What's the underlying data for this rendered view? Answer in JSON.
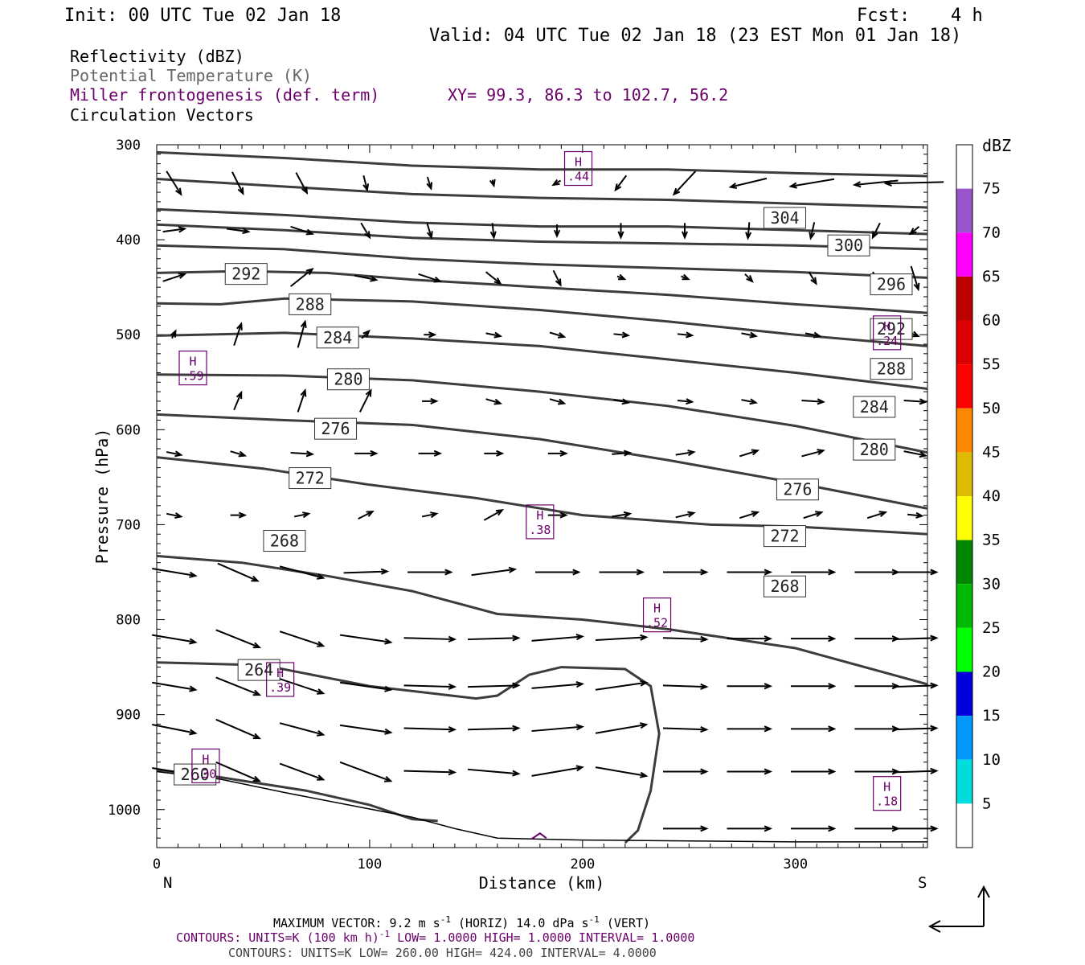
{
  "header": {
    "init": "Init: 00 UTC Tue 02 Jan 18",
    "fcst_label": "Fcst:",
    "fcst_value": "4 h",
    "valid": "Valid: 04 UTC Tue 02 Jan 18 (23 EST Mon 01 Jan 18)"
  },
  "fields": {
    "reflectivity": "Reflectivity (dBZ)",
    "theta": "Potential Temperature (K)",
    "miller": "Miller frontogenesis (def. term)",
    "xy": "XY=  99.3, 86.3 to 102.7, 56.2",
    "vectors": "Circulation Vectors"
  },
  "colors": {
    "theta_line": "#3c3c3c",
    "miller": "#6a006a",
    "vector": "#000000"
  },
  "chart_data": {
    "type": "cross-section",
    "xlabel": "Distance (km)",
    "ylabel": "Pressure (hPa)",
    "xlim": [
      0,
      362
    ],
    "ylim": [
      300,
      1040
    ],
    "y_scale": "linear, inverted",
    "x_ticks": [
      "0",
      "100",
      "200",
      "300"
    ],
    "y_ticks": [
      "300",
      "400",
      "500",
      "600",
      "700",
      "800",
      "900",
      "1000"
    ],
    "x_end_labels": {
      "left": "N",
      "right": "S"
    },
    "theta_contours": [
      {
        "value": "304",
        "points": [
          [
            0,
            308
          ],
          [
            60,
            314
          ],
          [
            120,
            322
          ],
          [
            180,
            326
          ],
          [
            240,
            326
          ],
          [
            300,
            330
          ],
          [
            362,
            333
          ]
        ]
      },
      {
        "value": "300",
        "points": [
          [
            0,
            336
          ],
          [
            60,
            344
          ],
          [
            120,
            352
          ],
          [
            180,
            356
          ],
          [
            240,
            358
          ],
          [
            300,
            362
          ],
          [
            362,
            366
          ]
        ]
      },
      {
        "value": "296",
        "points": [
          [
            0,
            368
          ],
          [
            60,
            374
          ],
          [
            120,
            382
          ],
          [
            180,
            386
          ],
          [
            240,
            386
          ],
          [
            300,
            390
          ],
          [
            362,
            394
          ]
        ]
      },
      {
        "value": "292",
        "points": [
          [
            0,
            384
          ],
          [
            60,
            390
          ],
          [
            120,
            398
          ],
          [
            180,
            402
          ],
          [
            240,
            404
          ],
          [
            300,
            406
          ],
          [
            362,
            410
          ]
        ]
      },
      {
        "value": "288",
        "points": [
          [
            0,
            406
          ],
          [
            60,
            410
          ],
          [
            120,
            420
          ],
          [
            180,
            426
          ],
          [
            240,
            430
          ],
          [
            300,
            434
          ],
          [
            362,
            440
          ]
        ]
      },
      {
        "value": "284",
        "points": [
          [
            0,
            435
          ],
          [
            40,
            433
          ],
          [
            80,
            435
          ],
          [
            120,
            442
          ],
          [
            180,
            450
          ],
          [
            240,
            458
          ],
          [
            300,
            468
          ],
          [
            362,
            477
          ]
        ]
      },
      {
        "value": "280",
        "points": [
          [
            0,
            467
          ],
          [
            30,
            468
          ],
          [
            60,
            462
          ],
          [
            120,
            465
          ],
          [
            180,
            474
          ],
          [
            240,
            486
          ],
          [
            300,
            500
          ],
          [
            362,
            512
          ]
        ]
      },
      {
        "value": "276",
        "points": [
          [
            0,
            501
          ],
          [
            60,
            498
          ],
          [
            120,
            504
          ],
          [
            180,
            512
          ],
          [
            240,
            526
          ],
          [
            300,
            540
          ],
          [
            362,
            557
          ]
        ]
      },
      {
        "value": "272",
        "points": [
          [
            0,
            542
          ],
          [
            60,
            543
          ],
          [
            120,
            548
          ],
          [
            180,
            560
          ],
          [
            240,
            575
          ],
          [
            300,
            596
          ],
          [
            362,
            624
          ]
        ]
      },
      {
        "value": "268",
        "points": [
          [
            0,
            584
          ],
          [
            60,
            590
          ],
          [
            120,
            595
          ],
          [
            180,
            610
          ],
          [
            240,
            632
          ],
          [
            300,
            656
          ],
          [
            362,
            683
          ]
        ]
      },
      {
        "value": "264",
        "points": [
          [
            0,
            629
          ],
          [
            50,
            641
          ],
          [
            100,
            658
          ],
          [
            150,
            672
          ],
          [
            200,
            690
          ],
          [
            260,
            700
          ],
          [
            300,
            702
          ],
          [
            362,
            710
          ]
        ]
      },
      {
        "value": "260",
        "points": [
          [
            0,
            733
          ],
          [
            40,
            740
          ],
          [
            80,
            754
          ],
          [
            120,
            770
          ],
          [
            160,
            794
          ],
          [
            200,
            800
          ],
          [
            240,
            810
          ],
          [
            300,
            830
          ],
          [
            362,
            868
          ]
        ]
      }
    ],
    "contour_labels": [
      {
        "text": "304",
        "x": 295,
        "p": 377
      },
      {
        "text": "300",
        "x": 325,
        "p": 406
      },
      {
        "text": "296",
        "x": 345,
        "p": 447
      },
      {
        "text": "292",
        "x": 42,
        "p": 436
      },
      {
        "text": "292",
        "x": 345,
        "p": 494
      },
      {
        "text": "288",
        "x": 72,
        "p": 468
      },
      {
        "text": "288",
        "x": 345,
        "p": 536
      },
      {
        "text": "284",
        "x": 85,
        "p": 503
      },
      {
        "text": "284",
        "x": 337,
        "p": 576
      },
      {
        "text": "280",
        "x": 90,
        "p": 547
      },
      {
        "text": "280",
        "x": 337,
        "p": 621
      },
      {
        "text": "276",
        "x": 84,
        "p": 599
      },
      {
        "text": "276",
        "x": 301,
        "p": 663
      },
      {
        "text": "272",
        "x": 72,
        "p": 651
      },
      {
        "text": "272",
        "x": 295,
        "p": 712
      },
      {
        "text": "268",
        "x": 60,
        "p": 717
      },
      {
        "text": "268",
        "x": 295,
        "p": 765
      },
      {
        "text": "264",
        "x": 48,
        "p": 853
      },
      {
        "text": "260",
        "x": 18,
        "p": 963
      }
    ],
    "lower_contours": [
      [
        [
          0,
          845
        ],
        [
          50,
          848
        ],
        [
          100,
          870
        ],
        [
          150,
          883
        ],
        [
          160,
          880
        ],
        [
          175,
          858
        ],
        [
          190,
          850
        ],
        [
          220,
          852
        ],
        [
          232,
          870
        ],
        [
          236,
          920
        ],
        [
          232,
          980
        ],
        [
          226,
          1022
        ],
        [
          220,
          1035
        ]
      ],
      [
        [
          0,
          958
        ],
        [
          30,
          966
        ],
        [
          70,
          980
        ],
        [
          100,
          995
        ],
        [
          120,
          1010
        ],
        [
          132,
          1012
        ]
      ]
    ],
    "terrain": [
      [
        0,
        960
      ],
      [
        30,
        968
      ],
      [
        60,
        982
      ],
      [
        90,
        995
      ],
      [
        120,
        1008
      ],
      [
        140,
        1020
      ],
      [
        160,
        1030
      ],
      [
        200,
        1032
      ],
      [
        250,
        1033
      ],
      [
        300,
        1034
      ],
      [
        362,
        1034
      ]
    ],
    "miller_maxima": [
      {
        "label": "H",
        "value": ".44",
        "x": 198,
        "p": 325
      },
      {
        "label": "H",
        "value": ".59",
        "x": 17,
        "p": 535
      },
      {
        "label": "H",
        "value": ".24",
        "x": 343,
        "p": 498
      },
      {
        "label": "H",
        "value": ".38",
        "x": 180,
        "p": 697
      },
      {
        "label": "H",
        "value": ".52",
        "x": 235,
        "p": 795
      },
      {
        "label": "H",
        "value": ".39",
        "x": 58,
        "p": 863
      },
      {
        "label": "H",
        "value": ".30",
        "x": 23,
        "p": 954
      },
      {
        "label": "H",
        "value": ".18",
        "x": 343,
        "p": 983
      }
    ],
    "colorbar": {
      "title": "dBZ",
      "ticks": [
        "75",
        "70",
        "65",
        "60",
        "55",
        "50",
        "45",
        "40",
        "35",
        "30",
        "25",
        "20",
        "15",
        "10",
        "5"
      ],
      "colors": [
        "#ffffff",
        "#9955cc",
        "#ff00ff",
        "#bb0000",
        "#dd0000",
        "#ff0000",
        "#ff8800",
        "#ddbb00",
        "#ffff00",
        "#008800",
        "#00bb00",
        "#00ff00",
        "#0000dd",
        "#0099ff",
        "#00dddd",
        "#ffffff"
      ]
    },
    "vector_rows": [
      {
        "p": 340,
        "u": [
          2,
          1.5,
          1.5,
          0.5,
          0.5,
          0.2,
          -1,
          -1.5,
          -3,
          -5,
          -6,
          -6,
          -8
        ],
        "w": [
          1.6,
          1.5,
          1.4,
          1.0,
          0.8,
          0.4,
          0.3,
          1.0,
          1.6,
          0.6,
          0.5,
          0.3,
          0.1
        ]
      },
      {
        "p": 390,
        "u": [
          3,
          3,
          3,
          1.2,
          0.6,
          0.2,
          0,
          0,
          0,
          -0.2,
          -0.5,
          -1,
          -1.2
        ],
        "w": [
          -0.2,
          0.2,
          0.5,
          1.0,
          1.0,
          1.0,
          0.8,
          1.0,
          1.0,
          1.1,
          1.1,
          1.0,
          0.5
        ]
      },
      {
        "p": 440,
        "u": [
          3,
          3,
          3,
          3,
          3,
          2,
          1,
          1,
          1,
          1,
          1,
          1,
          1
        ],
        "w": [
          -0.5,
          -0.5,
          -1.2,
          0.3,
          0.5,
          0.8,
          1.0,
          0.2,
          0.2,
          0.5,
          0.8,
          0.8,
          1.6
        ]
      },
      {
        "p": 500,
        "u": [
          0.5,
          1,
          1,
          1,
          1.5,
          2,
          2,
          2,
          2,
          2,
          2,
          1,
          1
        ],
        "w": [
          -0.5,
          -1.5,
          -1.8,
          -0.5,
          0,
          0.2,
          0.3,
          0.1,
          0.1,
          0.2,
          0.2,
          0.2,
          0.2
        ]
      },
      {
        "p": 570,
        "u": [
          0,
          1,
          1,
          1.5,
          2,
          2,
          2,
          2,
          2,
          2,
          3,
          3,
          3
        ],
        "w": [
          0,
          -1.2,
          -1.5,
          -1.5,
          0,
          0.3,
          0.3,
          0.2,
          0.1,
          0.2,
          0.1,
          0.3,
          0.1
        ]
      },
      {
        "p": 625,
        "u": [
          2,
          2,
          3,
          3,
          3,
          2.5,
          2.5,
          2.5,
          2.5,
          2.5,
          3,
          3,
          3
        ],
        "w": [
          0.2,
          0.3,
          0.1,
          0,
          0,
          0,
          0,
          -0.1,
          -0.2,
          -0.4,
          -0.4,
          -0.2,
          0.3
        ]
      },
      {
        "p": 690,
        "u": [
          2,
          2,
          2,
          2,
          2,
          2.5,
          2.5,
          2.5,
          2.5,
          2.5,
          2.5,
          2.5,
          2
        ],
        "w": [
          0.2,
          0,
          -0.2,
          -0.5,
          -0.2,
          -0.7,
          0,
          -0.2,
          -0.3,
          -0.4,
          -0.4,
          -0.4,
          0.1
        ]
      },
      {
        "p": 750,
        "u": [
          6,
          5.5,
          6,
          6,
          6,
          6,
          6,
          6,
          6,
          6,
          6,
          6,
          6
        ],
        "w": [
          0.5,
          1.2,
          0.8,
          -0.1,
          0,
          -0.4,
          0,
          0,
          0,
          0,
          0,
          0,
          0
        ]
      },
      {
        "p": 820,
        "u": [
          6,
          6,
          6,
          7,
          7,
          7,
          7,
          7,
          6,
          6,
          6,
          6,
          6
        ],
        "w": [
          0.5,
          1.2,
          1.0,
          0.5,
          0.1,
          -0.1,
          -0.3,
          -0.2,
          0.1,
          0,
          0,
          0,
          -0.1
        ]
      },
      {
        "p": 870,
        "u": [
          6,
          6,
          6,
          7,
          7,
          7,
          7,
          7,
          6,
          6,
          6,
          6,
          6
        ],
        "w": [
          0.5,
          1.2,
          1.0,
          0.5,
          0.1,
          -0.1,
          -0.3,
          -0.5,
          0.1,
          0,
          0,
          0,
          -0.1
        ]
      },
      {
        "p": 915,
        "u": [
          6,
          6,
          6,
          7,
          7,
          7,
          7,
          7,
          6,
          6,
          6,
          6,
          6
        ],
        "w": [
          0.6,
          1.3,
          0.8,
          0.5,
          0.1,
          -0.1,
          -0.3,
          -0.6,
          0.1,
          0,
          0,
          0,
          -0.1
        ]
      },
      {
        "p": 960,
        "u": [
          6,
          6,
          6,
          7,
          7,
          7,
          7,
          7,
          6,
          6,
          6,
          6,
          6
        ],
        "w": [
          0.5,
          1.3,
          1.1,
          1.3,
          0.1,
          0.3,
          -0.6,
          0.6,
          0,
          0,
          0,
          0,
          -0.1
        ]
      },
      {
        "p": 1020,
        "u": [
          0,
          0,
          0,
          0,
          0,
          0,
          0,
          0,
          6,
          6,
          6,
          6,
          6
        ],
        "w": [
          0,
          0,
          0,
          0,
          0,
          0,
          0,
          0,
          0,
          0,
          0,
          0,
          0
        ]
      }
    ],
    "vector_x": [
      8,
      38,
      68,
      98,
      128,
      158,
      188,
      218,
      248,
      278,
      308,
      338,
      356
    ]
  },
  "footer": {
    "max_vector": "MAXIMUM VECTOR:  9.2 m s",
    "max_vector_unit1": "-1",
    "max_vector_mid": " (HORIZ)        14.0 dPa s",
    "max_vector_unit2": "-1",
    "max_vector_end": " (VERT)",
    "contours1": "CONTOURS:  UNITS=K (100 km h)",
    "contours1_sup": "-1",
    "contours1_end": "  LOW=  1.0000       HIGH=  1.0000       INTERVAL=   1.0000",
    "contours2": "CONTOURS:  UNITS=K  LOW=  260.00       HIGH=  424.00       INTERVAL=    4.0000"
  }
}
